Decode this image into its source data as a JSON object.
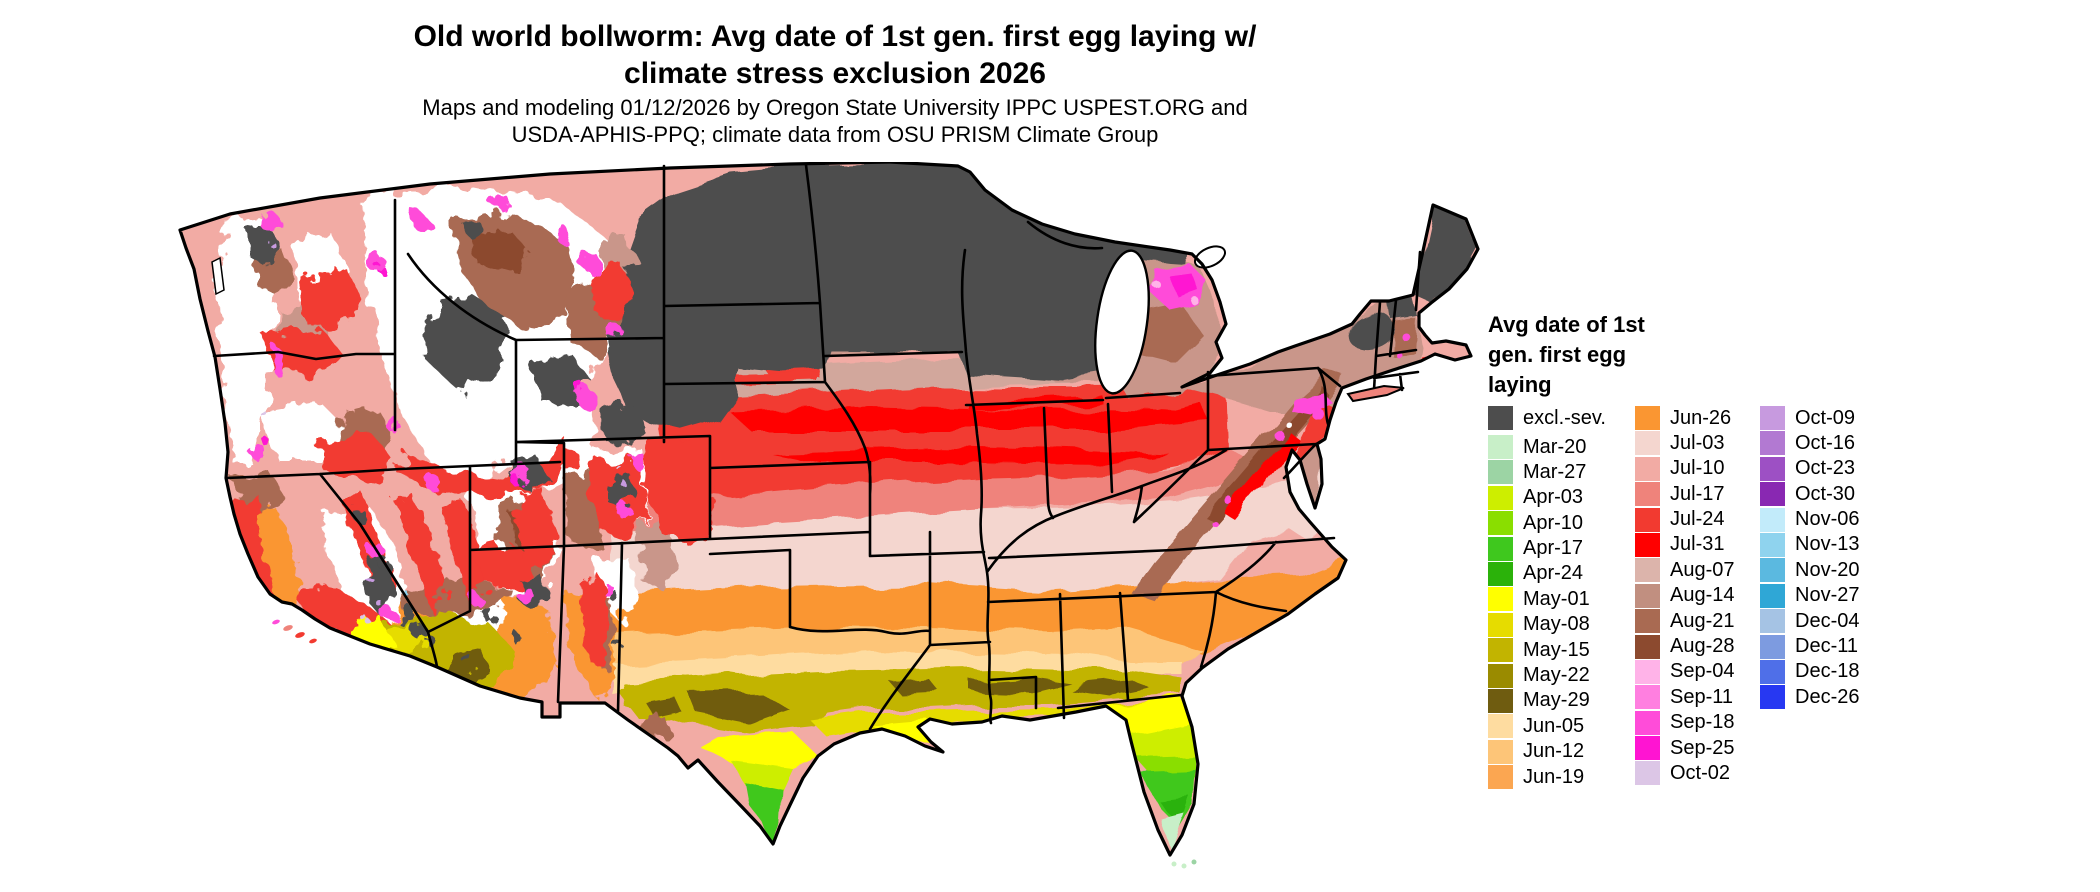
{
  "header": {
    "title_line1": "Old world bollworm: Avg date of 1st gen. first egg laying w/",
    "title_line2": "climate stress exclusion 2026",
    "subtitle_line1": "Maps and modeling 01/12/2026 by Oregon State University IPPC USPEST.ORG and",
    "subtitle_line2": "USDA-APHIS-PPQ; climate data from OSU PRISM Climate Group"
  },
  "legend": {
    "title_lines": [
      "Avg date of 1st",
      "gen. first egg",
      "laying"
    ],
    "columns": [
      [
        {
          "label": "excl.-sev.",
          "color": "#4D4D4D"
        },
        {
          "label": "Mar-20",
          "color": "#C8EFC8"
        },
        {
          "label": "Mar-27",
          "color": "#9CD4A4"
        },
        {
          "label": "Apr-03",
          "color": "#CDEE00"
        },
        {
          "label": "Apr-10",
          "color": "#8ADE00"
        },
        {
          "label": "Apr-17",
          "color": "#3FC81E"
        },
        {
          "label": "Apr-24",
          "color": "#2BB20A"
        },
        {
          "label": "May-01",
          "color": "#FFFF00"
        },
        {
          "label": "May-08",
          "color": "#E6DC00"
        },
        {
          "label": "May-15",
          "color": "#C2B400"
        },
        {
          "label": "May-22",
          "color": "#9A8B00"
        },
        {
          "label": "May-29",
          "color": "#6F5C10"
        },
        {
          "label": "Jun-05",
          "color": "#FEDCA0"
        },
        {
          "label": "Jun-12",
          "color": "#FDC578"
        },
        {
          "label": "Jun-19",
          "color": "#FBA651"
        }
      ],
      [
        {
          "label": "Jun-26",
          "color": "#FA9632"
        },
        {
          "label": "Jul-03",
          "color": "#F4D6CF"
        },
        {
          "label": "Jul-10",
          "color": "#F2ABA4"
        },
        {
          "label": "Jul-17",
          "color": "#EF837B"
        },
        {
          "label": "Jul-24",
          "color": "#F23A30"
        },
        {
          "label": "Jul-31",
          "color": "#FF0000"
        },
        {
          "label": "Aug-07",
          "color": "#DCB4AB"
        },
        {
          "label": "Aug-14",
          "color": "#C18F80"
        },
        {
          "label": "Aug-21",
          "color": "#A96A52"
        },
        {
          "label": "Aug-28",
          "color": "#8C4A2F"
        },
        {
          "label": "Sep-04",
          "color": "#FFB3E8"
        },
        {
          "label": "Sep-11",
          "color": "#FF7FE0"
        },
        {
          "label": "Sep-18",
          "color": "#FF4CD9"
        },
        {
          "label": "Sep-25",
          "color": "#FF14D2"
        },
        {
          "label": "Oct-02",
          "color": "#DCC6E6"
        }
      ],
      [
        {
          "label": "Oct-09",
          "color": "#C79ADF"
        },
        {
          "label": "Oct-16",
          "color": "#B279D2"
        },
        {
          "label": "Oct-23",
          "color": "#9D50C4"
        },
        {
          "label": "Oct-30",
          "color": "#8928B2"
        },
        {
          "label": "Nov-06",
          "color": "#C2EBFA"
        },
        {
          "label": "Nov-13",
          "color": "#8FD3EE"
        },
        {
          "label": "Nov-20",
          "color": "#5BB9E0"
        },
        {
          "label": "Nov-27",
          "color": "#2FA7D6"
        },
        {
          "label": "Dec-04",
          "color": "#A5C3E4"
        },
        {
          "label": "Dec-11",
          "color": "#7D9BE0"
        },
        {
          "label": "Dec-18",
          "color": "#4F6FE8"
        },
        {
          "label": "Dec-26",
          "color": "#2738F2"
        }
      ]
    ]
  },
  "map": {
    "background": "#FFFFFF",
    "state_border_color": "#000000",
    "excluded_color": "#4D4D4D"
  }
}
